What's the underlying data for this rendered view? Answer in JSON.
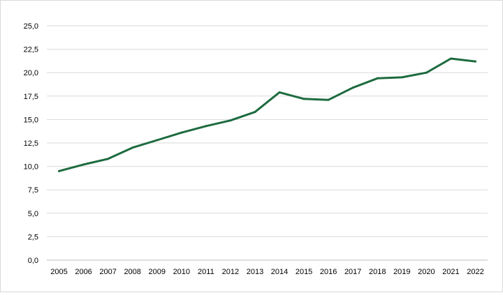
{
  "chart_data": {
    "type": "line",
    "title": "",
    "xlabel": "",
    "ylabel": "",
    "ylim": [
      0,
      25
    ],
    "grid": true,
    "legend": "none",
    "y_ticks": [
      "0,0",
      "2,5",
      "5,0",
      "7,5",
      "10,0",
      "12,5",
      "15,0",
      "17,5",
      "20,0",
      "22,5",
      "25,0"
    ],
    "y_tick_values": [
      0,
      2.5,
      5,
      7.5,
      10,
      12.5,
      15,
      17.5,
      20,
      22.5,
      25
    ],
    "categories": [
      "2005",
      "2006",
      "2007",
      "2008",
      "2009",
      "2010",
      "2011",
      "2012",
      "2013",
      "2014",
      "2015",
      "2016",
      "2017",
      "2018",
      "2019",
      "2020",
      "2021",
      "2022"
    ],
    "series": [
      {
        "values": [
          9.5,
          10.2,
          10.8,
          12.0,
          12.8,
          13.6,
          14.3,
          14.9,
          15.8,
          17.9,
          17.2,
          17.1,
          18.4,
          19.4,
          19.5,
          20.0,
          21.5,
          21.2
        ],
        "color": "#1d6b3f"
      }
    ],
    "colors": {
      "grid": "#d9d9d9",
      "axis": "#bfbfbf",
      "line": "#1d6b3f"
    }
  }
}
